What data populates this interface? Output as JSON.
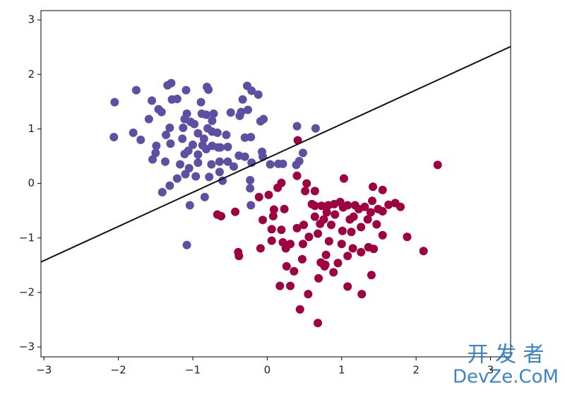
{
  "chart_data": {
    "type": "scatter",
    "xlim": [
      -3.04,
      3.27
    ],
    "ylim": [
      -3.18,
      3.17
    ],
    "xticks": [
      {
        "value": -3,
        "label": "−3"
      },
      {
        "value": -2,
        "label": "−2"
      },
      {
        "value": -1,
        "label": "−1"
      },
      0,
      1,
      2,
      3
    ],
    "yticks": [
      {
        "value": -3,
        "label": "−3"
      },
      {
        "value": -2,
        "label": "−2"
      },
      {
        "value": -1,
        "label": "−1"
      },
      0,
      1,
      2,
      3
    ],
    "series": [
      {
        "type": "scatter",
        "color": "#5e4fa2",
        "x": [
          -2.05,
          -1.76,
          -2.06,
          -1.8,
          -1.55,
          -1.7,
          -1.59,
          -1.46,
          -1.42,
          -1.34,
          -1.29,
          -1.09,
          -1.28,
          -1.21,
          -1.36,
          -1.3,
          -1.49,
          -1.5,
          -1.54,
          -1.37,
          -1.41,
          -1.31,
          -1.21,
          -1.17,
          -1.1,
          -1.05,
          -0.96,
          -1.11,
          -1.06,
          -1.0,
          -1.14,
          -1.13,
          -1.08,
          -1.11,
          -1.03,
          -0.98,
          -0.93,
          -0.85,
          -0.8,
          -0.74,
          -0.67,
          -0.88,
          -0.82,
          -0.79,
          -0.81,
          -0.89,
          -0.72,
          -0.87,
          -0.82,
          -0.74,
          -0.66,
          -0.93,
          -0.75,
          -0.64,
          -0.53,
          -0.45,
          -0.53,
          -0.78,
          -0.84,
          -1.04,
          -1.08,
          -0.49,
          -0.35,
          -0.26,
          -0.37,
          -0.33,
          -0.27,
          -0.21,
          -0.12,
          -0.3,
          -0.22,
          -0.09,
          -0.05,
          -0.07,
          -0.06,
          -0.23,
          -0.23,
          -0.22,
          0.04,
          0.15,
          0.21,
          0.39,
          0.43,
          0.48,
          0.4,
          0.65,
          -0.21,
          -0.38,
          -0.64,
          -0.3,
          -0.6,
          -0.93,
          -0.55,
          -1.31,
          -0.74,
          -0.63
        ],
        "values": [
          1.49,
          1.71,
          0.85,
          0.93,
          1.52,
          0.8,
          1.18,
          1.36,
          1.31,
          1.8,
          1.84,
          1.71,
          1.54,
          1.55,
          0.89,
          0.73,
          0.69,
          0.56,
          0.44,
          0.4,
          -0.16,
          -0.04,
          0.09,
          0.35,
          0.17,
          0.28,
          0.13,
          0.54,
          0.6,
          0.71,
          0.82,
          1.02,
          1.28,
          1.18,
          1.13,
          1.09,
          0.92,
          0.82,
          1.01,
          0.95,
          0.93,
          1.28,
          1.26,
          1.72,
          1.77,
          1.49,
          1.28,
          0.7,
          0.63,
          0.69,
          0.66,
          0.53,
          0.35,
          0.4,
          0.4,
          0.31,
          0.67,
          0.12,
          -0.25,
          -0.4,
          -1.13,
          1.3,
          1.31,
          1.35,
          1.24,
          1.54,
          1.79,
          1.7,
          1.63,
          0.84,
          0.85,
          1.14,
          1.18,
          0.58,
          0.49,
          0.06,
          -0.09,
          -0.4,
          0.35,
          0.36,
          0.36,
          0.34,
          0.41,
          0.56,
          1.05,
          1.01,
          0.38,
          0.51,
          0.21,
          0.49,
          0.05,
          0.38,
          0.89,
          1.02,
          1.15,
          0.66
        ]
      },
      {
        "type": "scatter",
        "color": "#9e0142",
        "x": [
          0.41,
          2.29,
          1.03,
          0.4,
          0.53,
          0.51,
          0.64,
          0.19,
          0.14,
          0.02,
          -0.11,
          0.09,
          0.23,
          0.08,
          -0.06,
          -0.43,
          -0.67,
          -0.62,
          0.06,
          0.19,
          0.4,
          0.49,
          0.31,
          0.06,
          -0.09,
          -0.39,
          -0.38,
          0.21,
          0.6,
          0.64,
          0.73,
          0.82,
          0.9,
          0.8,
          0.91,
          0.98,
          1.02,
          1.08,
          1.18,
          1.23,
          1.31,
          1.39,
          1.41,
          1.49,
          1.55,
          1.42,
          1.63,
          1.72,
          1.79,
          1.55,
          0.76,
          0.71,
          0.86,
          1.01,
          1.13,
          1.26,
          1.35,
          1.47,
          1.36,
          1.43,
          1.26,
          1.15,
          1.0,
          0.83,
          0.79,
          0.68,
          0.56,
          0.48,
          0.72,
          0.77,
          0.95,
          1.08,
          0.47,
          0.36,
          0.26,
          0.17,
          0.31,
          0.44,
          0.55,
          0.69,
          0.78,
          0.89,
          1.08,
          1.27,
          1.4,
          0.68,
          1.88,
          2.1,
          1.55,
          0.25,
          0.64,
          1.16,
          1.11
        ],
        "values": [
          0.79,
          0.34,
          0.09,
          0.14,
          0.0,
          -0.14,
          -0.14,
          0.01,
          -0.08,
          -0.21,
          -0.25,
          -0.48,
          -0.47,
          -0.6,
          -0.67,
          -0.52,
          -0.57,
          -0.6,
          -0.84,
          -0.85,
          -0.82,
          -0.76,
          -1.11,
          -1.05,
          -1.19,
          -1.26,
          -1.33,
          -1.08,
          -0.38,
          -0.41,
          -0.41,
          -0.4,
          -0.38,
          -0.53,
          -0.57,
          -0.34,
          -0.44,
          -0.4,
          -0.4,
          -0.47,
          -0.43,
          -0.53,
          -0.32,
          -0.47,
          -0.12,
          -0.06,
          -0.39,
          -0.36,
          -0.43,
          -0.51,
          -0.66,
          -0.74,
          -0.76,
          -0.87,
          -0.89,
          -0.8,
          -0.66,
          -0.75,
          -1.17,
          -1.2,
          -1.26,
          -1.19,
          -1.11,
          -1.06,
          -1.31,
          -0.92,
          -0.98,
          -1.11,
          -1.45,
          -1.52,
          -1.46,
          -1.33,
          -1.39,
          -1.61,
          -1.52,
          -1.88,
          -1.88,
          -2.31,
          -2.03,
          -1.74,
          -1.49,
          -1.63,
          -1.89,
          -2.03,
          -1.68,
          -2.56,
          -0.98,
          -1.24,
          -0.95,
          -1.19,
          -0.61,
          -0.61,
          -0.66
        ]
      },
      {
        "type": "line",
        "color": "#111111",
        "x": [
          -3.04,
          3.27
        ],
        "values": [
          -1.44,
          2.51
        ]
      }
    ]
  },
  "watermark": {
    "line1": "开 发 者",
    "line2": "DevZe.CoM"
  }
}
